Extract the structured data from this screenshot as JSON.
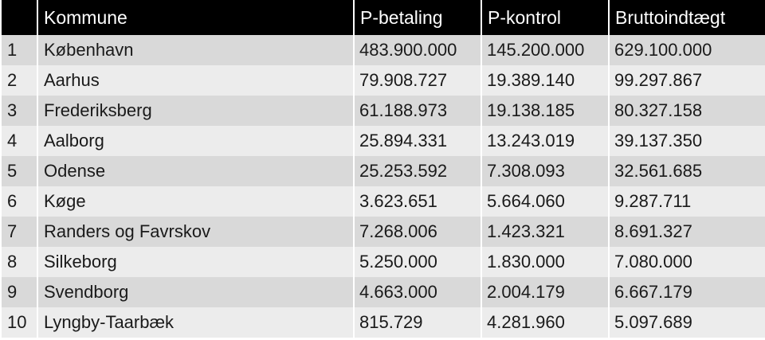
{
  "table": {
    "headers": [
      "",
      "Kommune",
      "P-betaling",
      "P-kontrol",
      "Bruttoindtægt"
    ],
    "rows": [
      {
        "rank": "1",
        "kommune": "København",
        "p_betaling": "483.900.000",
        "p_kontrol": "145.200.000",
        "brutto": "629.100.000"
      },
      {
        "rank": "2",
        "kommune": "Aarhus",
        "p_betaling": "79.908.727",
        "p_kontrol": "19.389.140",
        "brutto": "99.297.867"
      },
      {
        "rank": "3",
        "kommune": "Frederiksberg",
        "p_betaling": "61.188.973",
        "p_kontrol": "19.138.185",
        "brutto": "80.327.158"
      },
      {
        "rank": "4",
        "kommune": "Aalborg",
        "p_betaling": "25.894.331",
        "p_kontrol": "13.243.019",
        "brutto": "39.137.350"
      },
      {
        "rank": "5",
        "kommune": "Odense",
        "p_betaling": "25.253.592",
        "p_kontrol": "7.308.093",
        "brutto": "32.561.685"
      },
      {
        "rank": "6",
        "kommune": "Køge",
        "p_betaling": "3.623.651",
        "p_kontrol": "5.664.060",
        "brutto": "9.287.711"
      },
      {
        "rank": "7",
        "kommune": "Randers og Favrskov",
        "p_betaling": "7.268.006",
        "p_kontrol": "1.423.321",
        "brutto": "8.691.327"
      },
      {
        "rank": "8",
        "kommune": "Silkeborg",
        "p_betaling": "5.250.000",
        "p_kontrol": "1.830.000",
        "brutto": "7.080.000"
      },
      {
        "rank": "9",
        "kommune": "Svendborg",
        "p_betaling": "4.663.000",
        "p_kontrol": "2.004.179",
        "brutto": "6.667.179"
      },
      {
        "rank": "10",
        "kommune": "Lyngby-Taarbæk",
        "p_betaling": "815.729",
        "p_kontrol": "4.281.960",
        "brutto": "5.097.689"
      }
    ]
  },
  "colors": {
    "header_bg": "#000000",
    "header_text": "#ffffff",
    "row_odd": "#d9d9d9",
    "row_even": "#ececec"
  }
}
